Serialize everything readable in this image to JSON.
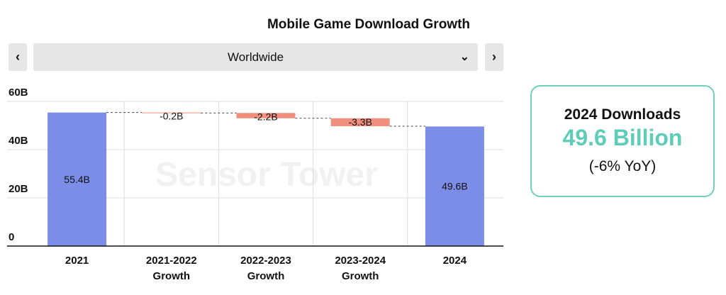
{
  "header": {
    "title": "Mobile Game Download Growth",
    "region": "Worldwide",
    "prev_icon": "chevron-left-icon",
    "next_icon": "chevron-right-icon",
    "dropdown_icon": "chevron-down-icon"
  },
  "watermark": "Sensor Tower",
  "card": {
    "label": "2024 Downloads",
    "value": "49.6 Billion",
    "change": "(-6% YoY)",
    "accent": "#5ecdb8"
  },
  "chart_data": {
    "type": "waterfall",
    "title": "Mobile Game Download Growth",
    "categories": [
      [
        "2021"
      ],
      [
        "2021-2022",
        "Growth"
      ],
      [
        "2022-2023",
        "Growth"
      ],
      [
        "2023-2024",
        "Growth"
      ],
      [
        "2024"
      ]
    ],
    "bars": [
      {
        "kind": "total",
        "start": 0,
        "end": 55.4,
        "label": "55.4B"
      },
      {
        "kind": "delta",
        "start": 55.4,
        "end": 55.2,
        "label": "-0.2B"
      },
      {
        "kind": "delta",
        "start": 55.2,
        "end": 53.0,
        "label": "-2.2B"
      },
      {
        "kind": "delta",
        "start": 53.0,
        "end": 49.7,
        "label": "-3.3B"
      },
      {
        "kind": "total",
        "start": 0,
        "end": 49.6,
        "label": "49.6B"
      }
    ],
    "yticks": [
      0,
      20,
      40,
      60
    ],
    "ytick_labels": [
      "0",
      "20B",
      "40B",
      "60B"
    ],
    "ylim": [
      0,
      60
    ],
    "unit": "B",
    "colors": {
      "total": "#7b8de6",
      "decrease": "#f08f7d"
    },
    "grid": true
  }
}
